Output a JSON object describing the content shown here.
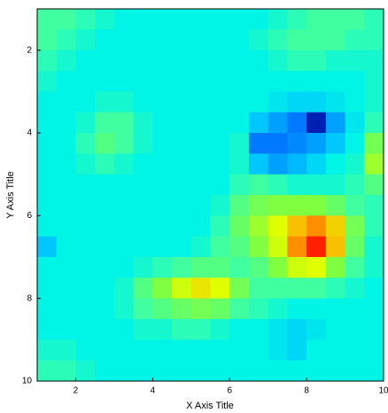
{
  "chart_data": {
    "type": "heatmap",
    "x_label": "X Axis Title",
    "y_label": "Y Axis Title",
    "xlim": [
      1,
      10
    ],
    "ylim": [
      1,
      10
    ],
    "y_inverted": true,
    "xticks": [
      2,
      4,
      6,
      8,
      10
    ],
    "yticks": [
      2,
      4,
      6,
      8,
      10
    ],
    "x": [
      1.25,
      1.75,
      2.25,
      2.75,
      3.25,
      3.75,
      4.25,
      4.75,
      5.25,
      5.75,
      6.25,
      6.75,
      7.25,
      7.75,
      8.25,
      8.75,
      9.25,
      9.75
    ],
    "y": [
      1.25,
      1.75,
      2.25,
      2.75,
      3.25,
      3.75,
      4.25,
      4.75,
      5.25,
      5.75,
      6.25,
      6.75,
      7.25,
      7.75,
      8.25,
      8.75,
      9.25,
      9.75
    ],
    "colorscale": [
      [
        0,
        "#000080"
      ],
      [
        25,
        "#0050ff"
      ],
      [
        40,
        "#00c8ff"
      ],
      [
        46,
        "#00f5e6"
      ],
      [
        52,
        "#40ffa0"
      ],
      [
        62,
        "#80ff40"
      ],
      [
        72,
        "#e0ff00"
      ],
      [
        82,
        "#ffb000"
      ],
      [
        95,
        "#ff2000"
      ]
    ],
    "z": [
      [
        52,
        52,
        50,
        48,
        46,
        46,
        46,
        46,
        46,
        46,
        46,
        46,
        48,
        50,
        52,
        52,
        52,
        50
      ],
      [
        52,
        50,
        48,
        46,
        46,
        46,
        46,
        46,
        46,
        46,
        46,
        48,
        50,
        52,
        52,
        52,
        50,
        50
      ],
      [
        50,
        48,
        46,
        46,
        46,
        46,
        46,
        46,
        46,
        46,
        46,
        46,
        48,
        50,
        50,
        48,
        48,
        48
      ],
      [
        48,
        46,
        46,
        46,
        46,
        46,
        46,
        46,
        46,
        46,
        46,
        46,
        46,
        46,
        46,
        46,
        46,
        48
      ],
      [
        46,
        46,
        46,
        48,
        48,
        46,
        46,
        46,
        46,
        46,
        46,
        46,
        44,
        42,
        42,
        44,
        46,
        48
      ],
      [
        46,
        46,
        48,
        52,
        52,
        48,
        46,
        46,
        46,
        46,
        46,
        40,
        35,
        30,
        10,
        35,
        44,
        50
      ],
      [
        46,
        46,
        50,
        55,
        52,
        48,
        46,
        46,
        46,
        46,
        48,
        30,
        30,
        32,
        35,
        40,
        46,
        60
      ],
      [
        46,
        46,
        48,
        50,
        48,
        46,
        46,
        46,
        46,
        46,
        48,
        40,
        35,
        38,
        42,
        46,
        48,
        65
      ],
      [
        46,
        46,
        46,
        46,
        46,
        46,
        46,
        46,
        46,
        46,
        50,
        52,
        50,
        48,
        48,
        48,
        50,
        55
      ],
      [
        46,
        46,
        46,
        46,
        46,
        46,
        46,
        46,
        46,
        48,
        55,
        60,
        62,
        62,
        62,
        58,
        52,
        50
      ],
      [
        46,
        46,
        46,
        46,
        46,
        46,
        46,
        46,
        46,
        50,
        58,
        65,
        72,
        80,
        85,
        78,
        60,
        50
      ],
      [
        40,
        46,
        46,
        46,
        46,
        46,
        46,
        46,
        48,
        52,
        55,
        62,
        70,
        85,
        95,
        80,
        58,
        48
      ],
      [
        46,
        46,
        46,
        46,
        46,
        48,
        50,
        52,
        55,
        55,
        52,
        55,
        62,
        70,
        72,
        62,
        52,
        48
      ],
      [
        46,
        46,
        46,
        46,
        48,
        55,
        62,
        70,
        75,
        72,
        60,
        52,
        52,
        52,
        52,
        50,
        48,
        46
      ],
      [
        46,
        46,
        46,
        46,
        48,
        52,
        55,
        58,
        60,
        58,
        52,
        50,
        48,
        46,
        46,
        46,
        46,
        46
      ],
      [
        46,
        46,
        46,
        46,
        46,
        48,
        48,
        50,
        50,
        48,
        46,
        46,
        44,
        42,
        44,
        46,
        46,
        46
      ],
      [
        48,
        48,
        46,
        46,
        46,
        46,
        46,
        46,
        46,
        46,
        46,
        46,
        44,
        42,
        46,
        46,
        46,
        46
      ],
      [
        50,
        50,
        48,
        46,
        46,
        46,
        46,
        46,
        46,
        46,
        46,
        46,
        46,
        46,
        46,
        46,
        46,
        46
      ]
    ]
  }
}
